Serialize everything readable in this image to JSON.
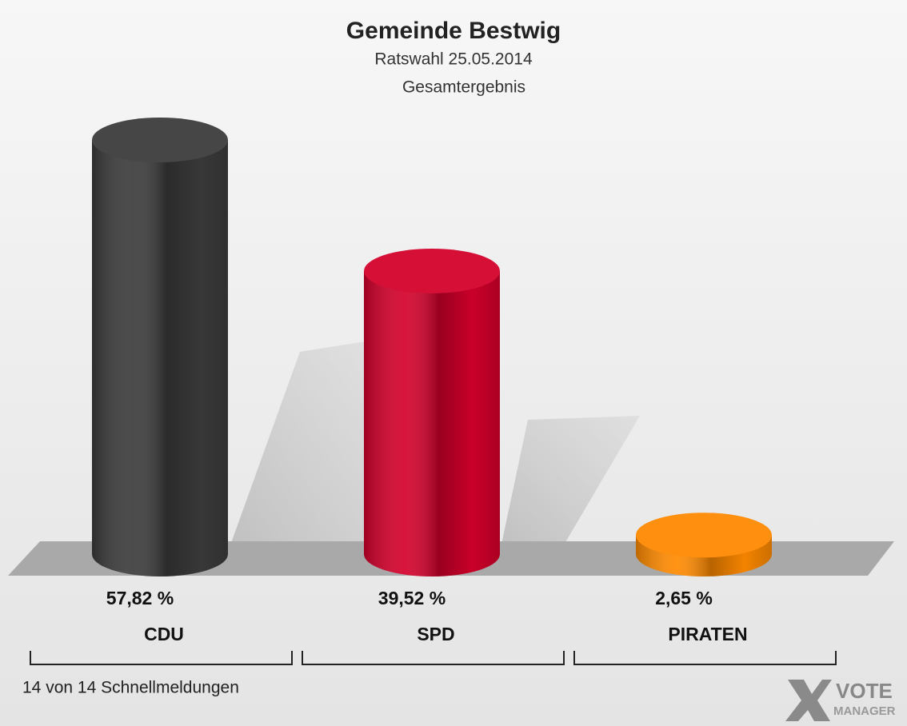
{
  "chart_data": {
    "type": "bar",
    "title": "Gemeinde Bestwig",
    "subtitle": "Ratswahl 25.05.2014",
    "subtitle2": "Gesamtergebnis",
    "categories": [
      "CDU",
      "SPD",
      "PIRATEN"
    ],
    "values": [
      57.82,
      39.52,
      2.65
    ],
    "value_labels": [
      "57,82 %",
      "39,52 %",
      "2,65 %"
    ],
    "colors": [
      "#3b3b3b",
      "#d4002b",
      "#ff8a00"
    ],
    "footer": "14 von 14 Schnellmeldungen",
    "logo_text": "VOTE",
    "logo_subtext": "MANAGER"
  }
}
